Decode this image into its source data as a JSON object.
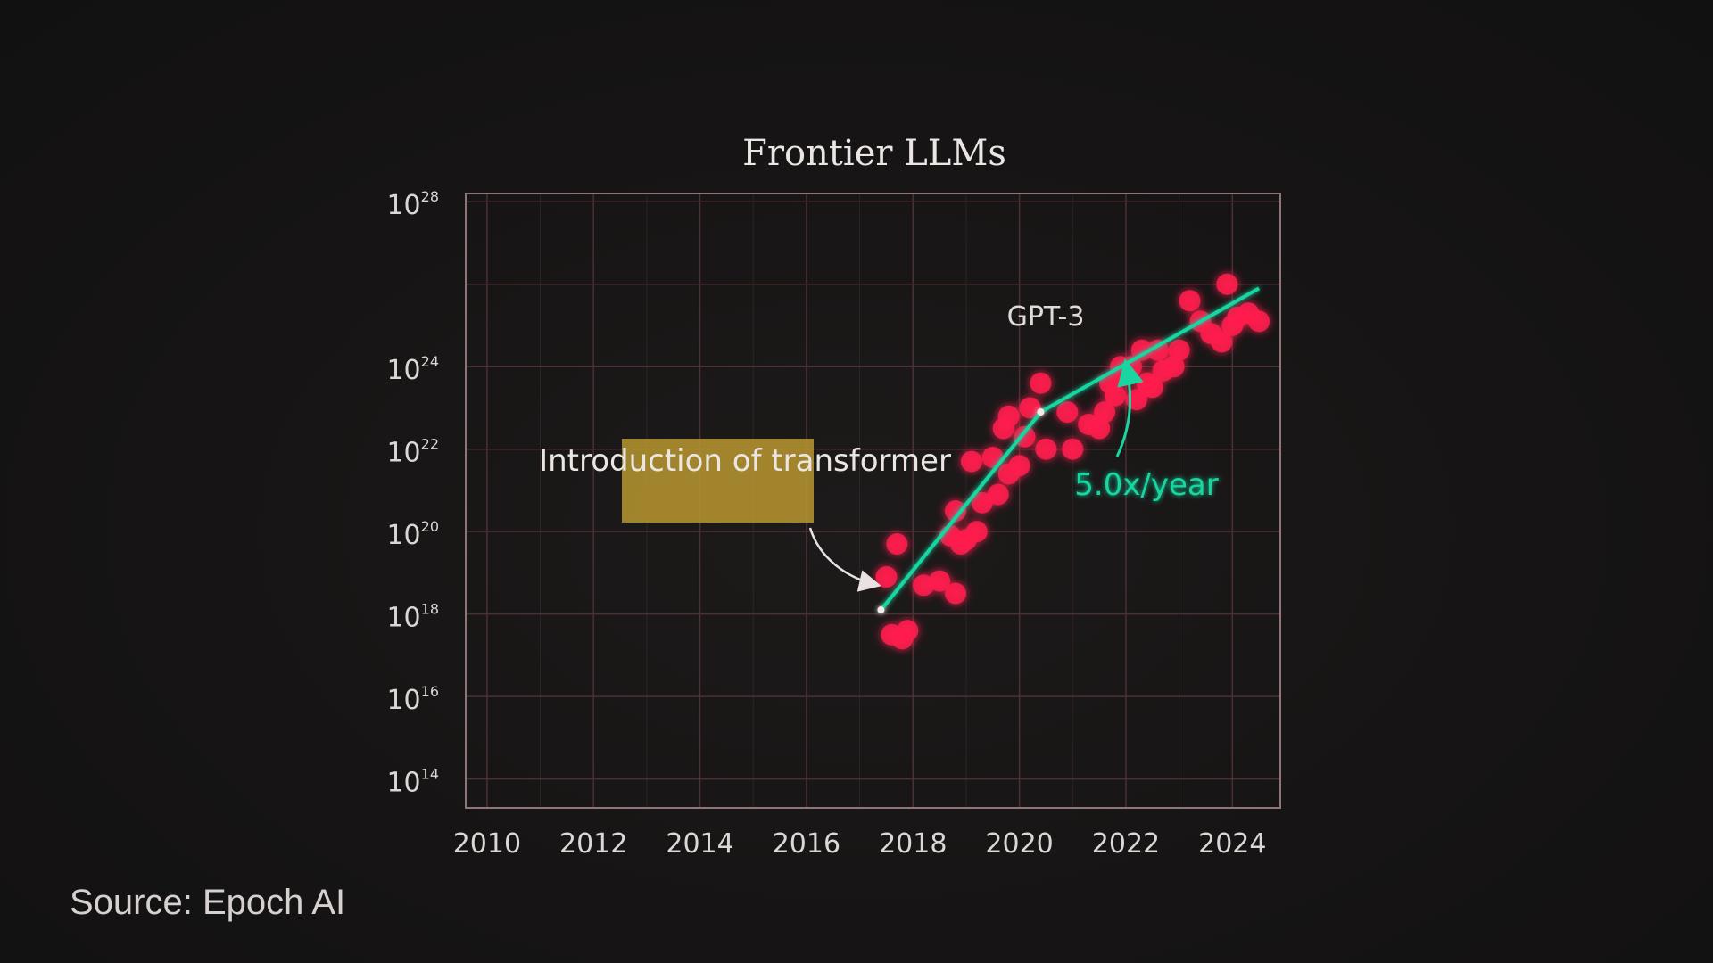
{
  "chart_data": {
    "type": "scatter",
    "title": "Frontier LLMs",
    "xlabel": "",
    "ylabel": "",
    "y_scale": "log",
    "xlim": [
      2009.6,
      2024.9
    ],
    "ylim_exponent": [
      13.3,
      28.2
    ],
    "x_ticks": [
      "2010",
      "2012",
      "2014",
      "2016",
      "2018",
      "2020",
      "2022",
      "2024"
    ],
    "y_ticks": [
      {
        "base": "10",
        "exp": "28"
      },
      {
        "base": "10",
        "exp": "24"
      },
      {
        "base": "10",
        "exp": "22"
      },
      {
        "base": "10",
        "exp": "20"
      },
      {
        "base": "10",
        "exp": "18"
      },
      {
        "base": "10",
        "exp": "16"
      },
      {
        "base": "10",
        "exp": "14"
      }
    ],
    "grid": true,
    "colors": {
      "points": "#ff1f4e",
      "trend": "#19d6a1",
      "grid": "#4b3034",
      "frame": "#8e7676",
      "highlight": "#b89830",
      "text": "#dcd6d5"
    },
    "points_log10": [
      [
        2017.5,
        18.9
      ],
      [
        2017.7,
        19.7
      ],
      [
        2017.8,
        17.4
      ],
      [
        2017.6,
        17.5
      ],
      [
        2017.9,
        17.6
      ],
      [
        2018.2,
        18.7
      ],
      [
        2018.5,
        18.8
      ],
      [
        2018.8,
        18.5
      ],
      [
        2018.7,
        19.9
      ],
      [
        2018.9,
        19.7
      ],
      [
        2018.8,
        20.5
      ],
      [
        2019.0,
        19.8
      ],
      [
        2019.2,
        20.0
      ],
      [
        2019.3,
        20.7
      ],
      [
        2019.1,
        21.7
      ],
      [
        2019.5,
        21.8
      ],
      [
        2019.6,
        20.9
      ],
      [
        2019.8,
        21.4
      ],
      [
        2019.7,
        22.5
      ],
      [
        2019.8,
        22.8
      ],
      [
        2020.1,
        22.3
      ],
      [
        2020.0,
        21.6
      ],
      [
        2020.2,
        23.0
      ],
      [
        2020.4,
        23.6
      ],
      [
        2020.5,
        22.0
      ],
      [
        2020.9,
        22.9
      ],
      [
        2021.0,
        22.0
      ],
      [
        2021.3,
        22.6
      ],
      [
        2021.5,
        22.5
      ],
      [
        2021.6,
        22.9
      ],
      [
        2021.8,
        23.3
      ],
      [
        2021.9,
        24.0
      ],
      [
        2022.0,
        23.8
      ],
      [
        2022.1,
        24.0
      ],
      [
        2022.2,
        23.2
      ],
      [
        2022.3,
        24.4
      ],
      [
        2022.4,
        23.6
      ],
      [
        2022.6,
        24.4
      ],
      [
        2022.7,
        23.9
      ],
      [
        2022.9,
        24.0
      ],
      [
        2023.0,
        24.4
      ],
      [
        2023.2,
        25.6
      ],
      [
        2023.4,
        25.1
      ],
      [
        2023.6,
        24.8
      ],
      [
        2023.9,
        26.0
      ],
      [
        2024.0,
        25.0
      ],
      [
        2024.1,
        25.2
      ],
      [
        2024.3,
        25.3
      ],
      [
        2024.5,
        25.1
      ],
      [
        2023.8,
        24.6
      ],
      [
        2021.7,
        23.6
      ],
      [
        2022.5,
        23.5
      ]
    ],
    "trend_log10": [
      [
        2017.4,
        18.1
      ],
      [
        2020.4,
        22.9
      ],
      [
        2024.5,
        25.9
      ]
    ],
    "annotations": {
      "transformer": "Introduction of transformer",
      "gpt3": "GPT-3",
      "rate": "5.0x/year"
    }
  },
  "source": "Source: Epoch AI"
}
